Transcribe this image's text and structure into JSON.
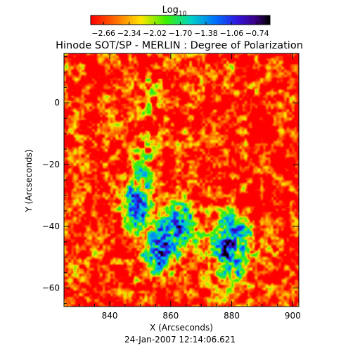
{
  "chart_data": {
    "type": "heatmap",
    "title": "Hinode SOT/SP - MERLIN : Degree of Polarization",
    "subtitle": "24-Jan-2007 12:14:06.621",
    "xlabel": "X (Arcseconds)",
    "ylabel": "Y (Arcseconds)",
    "xlim": [
      825,
      902
    ],
    "ylim": [
      -66,
      16
    ],
    "x_ticks": [
      840,
      860,
      880,
      900
    ],
    "y_ticks": [
      0,
      -20,
      -40,
      -60
    ],
    "colorbar": {
      "label_base": "Log",
      "label_sub": "10",
      "range": [
        -2.82,
        -0.58
      ],
      "ticks": [
        "-2.66",
        "-2.34",
        "-2.02",
        "-1.70",
        "-1.38",
        "-1.06",
        "-0.74"
      ],
      "colormap": "rainbow (red low to black high)"
    },
    "features": [
      {
        "label": "polarization concentration",
        "x": 880,
        "y": -47,
        "peak": -0.95
      },
      {
        "label": "polarization concentration",
        "x": 849,
        "y": -33,
        "peak": -1.05
      },
      {
        "label": "polarization concentration",
        "x": 856,
        "y": -48,
        "peak": -1.1
      },
      {
        "label": "polarization concentration",
        "x": 863,
        "y": -39,
        "peak": -1.55
      }
    ]
  }
}
